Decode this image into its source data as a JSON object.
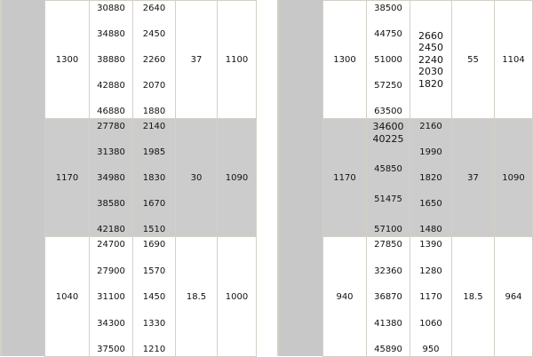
{
  "colors": {
    "row_light": "#ffffff",
    "row_dark": "#cccccc",
    "border": "#d4d0c8"
  },
  "tables": [
    {
      "rows": [
        {
          "shade": "light",
          "c1": "1300",
          "c2": [
            [
              "30880"
            ],
            [
              "34880"
            ],
            [
              "38880"
            ],
            [
              "42880"
            ],
            [
              "46880"
            ]
          ],
          "c3": [
            [
              "2640"
            ],
            [
              "2450"
            ],
            [
              "2260"
            ],
            [
              "2070"
            ],
            [
              "1880"
            ]
          ],
          "c4": "37",
          "c5": "1100"
        },
        {
          "shade": "dark",
          "c1": "1170",
          "c2": [
            [
              "27780"
            ],
            [
              "31380"
            ],
            [
              "34980"
            ],
            [
              "38580"
            ],
            [
              "42180"
            ]
          ],
          "c3": [
            [
              "2140"
            ],
            [
              "1985"
            ],
            [
              "1830"
            ],
            [
              "1670"
            ],
            [
              "1510"
            ]
          ],
          "c4": "30",
          "c5": "1090"
        },
        {
          "shade": "light",
          "c1": "1040",
          "c2": [
            [
              "24700"
            ],
            [
              "27900"
            ],
            [
              "31100"
            ],
            [
              "34300"
            ],
            [
              "37500"
            ]
          ],
          "c3": [
            [
              "1690"
            ],
            [
              "1570"
            ],
            [
              "1450"
            ],
            [
              "1330"
            ],
            [
              "1210"
            ]
          ],
          "c4": "18.5",
          "c5": "1000"
        }
      ]
    },
    {
      "rows": [
        {
          "shade": "light",
          "c1": "1300",
          "c2": [
            [
              "38500"
            ],
            [
              "44750"
            ],
            [
              "51000"
            ],
            [
              "57250"
            ],
            [
              "63500"
            ]
          ],
          "c3": [
            [
              "2660",
              "2450",
              "2240",
              "2030",
              "1820"
            ]
          ],
          "c4": "55",
          "c5": "1104"
        },
        {
          "shade": "dark",
          "c1": "1170",
          "c2": [
            [
              "34600",
              "40225"
            ],
            [
              "45850"
            ],
            [
              "51475"
            ],
            [
              "57100"
            ]
          ],
          "c3": [
            [
              "2160"
            ],
            [
              "1990"
            ],
            [
              "1820"
            ],
            [
              "1650"
            ],
            [
              "1480"
            ]
          ],
          "c4": "37",
          "c5": "1090"
        },
        {
          "shade": "light",
          "c1": "940",
          "c2": [
            [
              "27850"
            ],
            [
              "32360"
            ],
            [
              "36870"
            ],
            [
              "41380"
            ],
            [
              "45890"
            ]
          ],
          "c3": [
            [
              "1390"
            ],
            [
              "1280"
            ],
            [
              "1170"
            ],
            [
              "1060"
            ],
            [
              "950"
            ]
          ],
          "c4": "18.5",
          "c5": "964"
        }
      ]
    }
  ]
}
